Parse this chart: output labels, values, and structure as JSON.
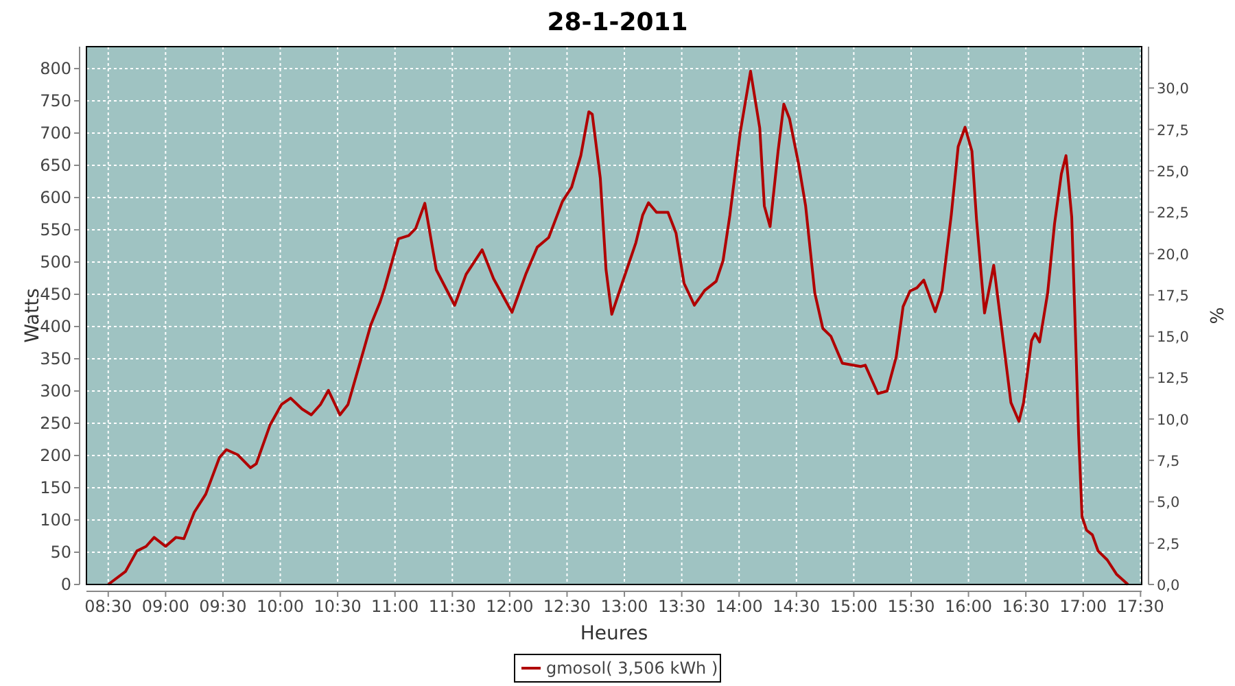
{
  "chart_data": {
    "type": "line",
    "title": "28-1-2011",
    "xlabel": "Heures",
    "ylabel": "Watts",
    "y2label": "%",
    "xlim": [
      8.31,
      17.51
    ],
    "ylim": [
      0,
      834
    ],
    "y2lim": [
      0,
      32.5
    ],
    "xticks": [
      {
        "value": 8.5,
        "label": "08:30"
      },
      {
        "value": 9,
        "label": "09:00"
      },
      {
        "value": 9.5,
        "label": "09:30"
      },
      {
        "value": 10,
        "label": "10:00"
      },
      {
        "value": 10.5,
        "label": "10:30"
      },
      {
        "value": 11,
        "label": "11:00"
      },
      {
        "value": 11.5,
        "label": "11:30"
      },
      {
        "value": 12,
        "label": "12:00"
      },
      {
        "value": 12.5,
        "label": "12:30"
      },
      {
        "value": 13,
        "label": "13:00"
      },
      {
        "value": 13.5,
        "label": "13:30"
      },
      {
        "value": 14,
        "label": "14:00"
      },
      {
        "value": 14.5,
        "label": "14:30"
      },
      {
        "value": 15,
        "label": "15:00"
      },
      {
        "value": 15.5,
        "label": "15:30"
      },
      {
        "value": 16,
        "label": "16:00"
      },
      {
        "value": 16.5,
        "label": "16:30"
      },
      {
        "value": 17,
        "label": "17:00"
      },
      {
        "value": 17.5,
        "label": "17:30"
      }
    ],
    "yticks": [
      0,
      50,
      100,
      150,
      200,
      250,
      300,
      350,
      400,
      450,
      500,
      550,
      600,
      650,
      700,
      750,
      800
    ],
    "y2ticks": [
      {
        "value": 0,
        "label": "0,0"
      },
      {
        "value": 2.5,
        "label": "2,5"
      },
      {
        "value": 5,
        "label": "5,0"
      },
      {
        "value": 7.5,
        "label": "7,5"
      },
      {
        "value": 10,
        "label": "10,0"
      },
      {
        "value": 12.5,
        "label": "12,5"
      },
      {
        "value": 15,
        "label": "15,0"
      },
      {
        "value": 17.5,
        "label": "17,5"
      },
      {
        "value": 20,
        "label": "20,0"
      },
      {
        "value": 22.5,
        "label": "22,5"
      },
      {
        "value": 25,
        "label": "25,0"
      },
      {
        "value": 27.5,
        "label": "27,5"
      },
      {
        "value": 30,
        "label": "30,0"
      }
    ],
    "grid": true,
    "legend": "bottom",
    "marker": "none",
    "line_style": "solid",
    "series": [
      {
        "name": "gmosol( 3,506 kWh )",
        "color": "#b00000",
        "x": [
          8.5,
          8.65,
          8.75,
          8.83,
          8.9,
          9.0,
          9.09,
          9.16,
          9.25,
          9.35,
          9.47,
          9.53,
          9.63,
          9.74,
          9.79,
          9.91,
          10.01,
          10.09,
          10.19,
          10.27,
          10.35,
          10.42,
          10.52,
          10.59,
          10.71,
          10.79,
          10.87,
          10.91,
          11.03,
          11.12,
          11.18,
          11.26,
          11.36,
          11.52,
          11.62,
          11.76,
          11.86,
          12.02,
          12.14,
          12.24,
          12.34,
          12.46,
          12.54,
          12.62,
          12.69,
          12.72,
          12.79,
          12.84,
          12.89,
          12.98,
          13.1,
          13.16,
          13.21,
          13.28,
          13.38,
          13.45,
          13.52,
          13.61,
          13.7,
          13.8,
          13.86,
          13.92,
          14.01,
          14.1,
          14.18,
          14.22,
          14.27,
          14.34,
          14.39,
          14.44,
          14.52,
          14.58,
          14.66,
          14.73,
          14.8,
          14.9,
          15.06,
          15.1,
          15.21,
          15.29,
          15.37,
          15.43,
          15.49,
          15.55,
          15.61,
          15.71,
          15.77,
          15.85,
          15.91,
          15.97,
          16.03,
          16.07,
          16.14,
          16.22,
          16.29,
          16.37,
          16.44,
          16.48,
          16.55,
          16.58,
          16.62,
          16.69,
          16.75,
          16.81,
          16.85,
          16.9,
          16.93,
          16.96,
          16.99,
          17.03,
          17.08,
          17.13,
          17.21,
          17.29,
          17.39
        ],
        "values": [
          0,
          20,
          52,
          59,
          73,
          59,
          73,
          71,
          112,
          140,
          197,
          209,
          201,
          181,
          187,
          247,
          279,
          289,
          272,
          263,
          279,
          301,
          263,
          279,
          353,
          403,
          438,
          460,
          536,
          541,
          552,
          591,
          488,
          433,
          481,
          519,
          474,
          422,
          481,
          523,
          538,
          594,
          616,
          665,
          733,
          729,
          630,
          488,
          419,
          467,
          530,
          573,
          592,
          577,
          577,
          545,
          467,
          433,
          456,
          470,
          502,
          573,
          701,
          796,
          708,
          587,
          555,
          672,
          745,
          722,
          651,
          587,
          452,
          397,
          385,
          343,
          338,
          340,
          296,
          300,
          353,
          431,
          455,
          460,
          472,
          423,
          456,
          573,
          679,
          709,
          672,
          566,
          421,
          495,
          396,
          282,
          253,
          282,
          378,
          389,
          376,
          452,
          559,
          637,
          665,
          570,
          403,
          233,
          105,
          84,
          77,
          52,
          38,
          16,
          0
        ]
      }
    ]
  }
}
